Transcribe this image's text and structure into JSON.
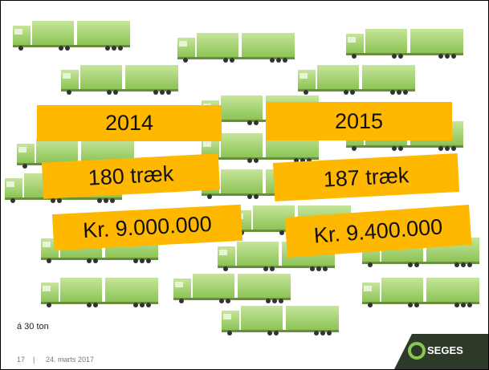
{
  "slide": {
    "columns": [
      {
        "year": "2014",
        "trips": "180 træk",
        "amount": "Kr. 9.000.000"
      },
      {
        "year": "2015",
        "trips": "187 træk",
        "amount": "Kr. 9.400.000"
      }
    ],
    "note": "á 30 ton",
    "footer": {
      "page": "17",
      "separator": "|",
      "date": "24. marts 2017"
    },
    "logo": "SEGES"
  }
}
